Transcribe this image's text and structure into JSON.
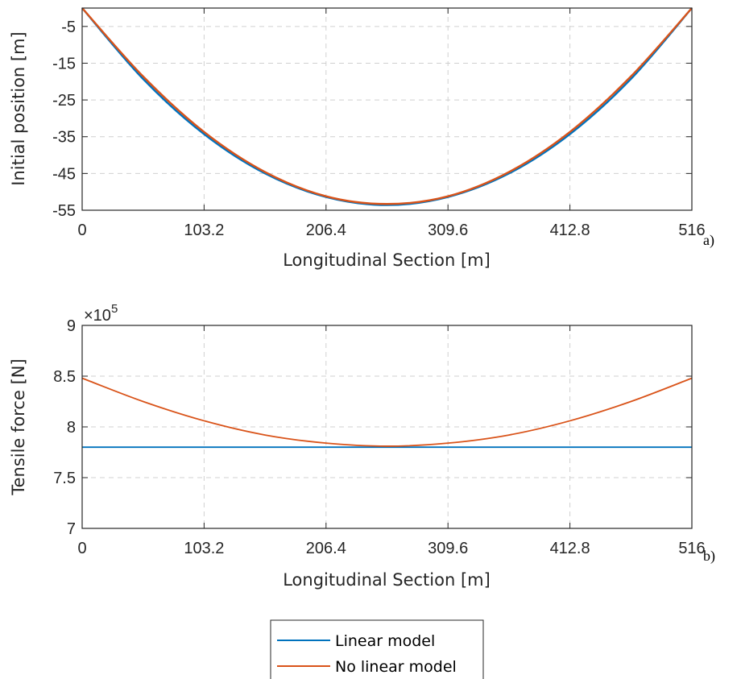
{
  "chart_data": [
    {
      "panel": "a)",
      "type": "line",
      "xlabel": "Longitudinal Section [m]",
      "ylabel": "Initial position [m]",
      "xlim": [
        0,
        516
      ],
      "ylim": [
        -55,
        0
      ],
      "xticks": [
        0,
        103.2,
        206.4,
        309.6,
        412.8,
        516
      ],
      "xtick_labels": [
        "0",
        "103.2",
        "206.4",
        "309.6",
        "412.8",
        "516"
      ],
      "yticks": [
        -5,
        -15,
        -25,
        -35,
        -45,
        -55
      ],
      "ytick_labels": [
        "-5",
        "-15",
        "-25",
        "-35",
        "-45",
        "-55"
      ],
      "grid": true,
      "series": [
        {
          "name": "Linear model",
          "color": "#0072BD",
          "x": [
            0,
            51.6,
            103.2,
            154.8,
            206.4,
            258,
            309.6,
            361.2,
            412.8,
            464.4,
            516
          ],
          "y": [
            0,
            -19.3,
            -34.3,
            -45.0,
            -51.4,
            -53.6,
            -51.4,
            -45.0,
            -34.3,
            -19.3,
            0
          ]
        },
        {
          "name": "No linear model",
          "color": "#D95319",
          "x": [
            0,
            51.6,
            103.2,
            154.8,
            206.4,
            258,
            309.6,
            361.2,
            412.8,
            464.4,
            516
          ],
          "y": [
            0,
            -18.6,
            -33.7,
            -44.6,
            -51.2,
            -53.3,
            -51.2,
            -44.6,
            -33.7,
            -18.6,
            0
          ]
        }
      ]
    },
    {
      "panel": "b)",
      "type": "line",
      "xlabel": "Longitudinal Section [m]",
      "ylabel": "Tensile force [N]",
      "exponent_label": "×10",
      "exponent_power": "5",
      "xlim": [
        0,
        516
      ],
      "ylim": [
        7,
        9
      ],
      "xticks": [
        0,
        103.2,
        206.4,
        309.6,
        412.8,
        516
      ],
      "xtick_labels": [
        "0",
        "103.2",
        "206.4",
        "309.6",
        "412.8",
        "516"
      ],
      "yticks": [
        7,
        7.5,
        8,
        8.5,
        9
      ],
      "ytick_labels": [
        "7",
        "7.5",
        "8",
        "8.5",
        "9"
      ],
      "grid": true,
      "series": [
        {
          "name": "Linear model",
          "color": "#0072BD",
          "x": [
            0,
            516
          ],
          "y": [
            7.8,
            7.8
          ]
        },
        {
          "name": "No linear model",
          "color": "#D95319",
          "x": [
            0,
            51.6,
            103.2,
            154.8,
            206.4,
            258,
            309.6,
            361.2,
            412.8,
            464.4,
            516
          ],
          "y": [
            8.48,
            8.25,
            8.06,
            7.92,
            7.84,
            7.81,
            7.84,
            7.92,
            8.06,
            8.25,
            8.48
          ]
        }
      ]
    }
  ],
  "legend": {
    "placement": "bottom-center",
    "entries": [
      {
        "label": "Linear model",
        "color": "#0072BD"
      },
      {
        "label": "No linear model",
        "color": "#D95319"
      }
    ]
  }
}
